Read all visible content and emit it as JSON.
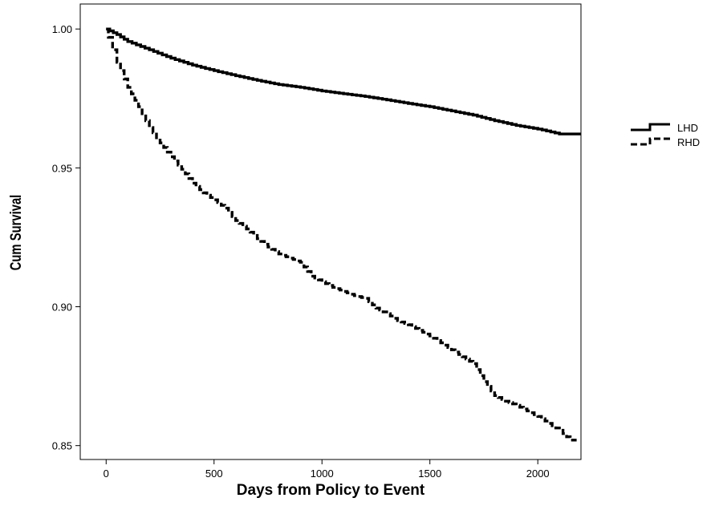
{
  "chart_data": {
    "type": "line",
    "title": "",
    "xlabel": "Days from Policy to Event",
    "ylabel": "Cum Survival",
    "xlim": [
      -120,
      2200
    ],
    "ylim": [
      0.845,
      1.009
    ],
    "x_ticks": [
      0,
      500,
      1000,
      1500,
      2000
    ],
    "x_tick_labels": [
      "0",
      "500",
      "1000",
      "1500",
      "2000"
    ],
    "y_ticks": [
      0.85,
      0.9,
      0.95,
      1.0
    ],
    "y_tick_labels": [
      "0.85",
      "0.90",
      "0.95",
      "1.00"
    ],
    "grid": false,
    "legend_position": "right",
    "series": [
      {
        "name": "LHD",
        "style": "solid",
        "color": "#000000",
        "x": [
          0,
          50,
          100,
          200,
          300,
          400,
          500,
          600,
          700,
          800,
          900,
          1000,
          1100,
          1200,
          1300,
          1400,
          1500,
          1600,
          1700,
          1800,
          1900,
          2000,
          2100,
          2200
        ],
        "y": [
          1.0,
          0.998,
          0.9955,
          0.9925,
          0.9895,
          0.987,
          0.985,
          0.9832,
          0.9815,
          0.98,
          0.979,
          0.9777,
          0.9767,
          0.9757,
          0.9745,
          0.9732,
          0.972,
          0.9705,
          0.969,
          0.967,
          0.9653,
          0.964,
          0.9622,
          0.9622
        ]
      },
      {
        "name": "RHD",
        "style": "dashed",
        "color": "#000000",
        "x": [
          0,
          10,
          50,
          100,
          150,
          200,
          250,
          300,
          350,
          400,
          450,
          500,
          550,
          600,
          650,
          700,
          750,
          800,
          850,
          900,
          950,
          1000,
          1050,
          1100,
          1150,
          1200,
          1250,
          1300,
          1350,
          1400,
          1450,
          1500,
          1550,
          1600,
          1650,
          1700,
          1750,
          1800,
          1850,
          1900,
          1950,
          2000,
          2050,
          2100,
          2150,
          2180
        ],
        "y": [
          1.0,
          0.997,
          0.988,
          0.979,
          0.972,
          0.9645,
          0.959,
          0.954,
          0.9495,
          0.9445,
          0.941,
          0.9385,
          0.9355,
          0.931,
          0.928,
          0.9245,
          0.9215,
          0.919,
          0.9175,
          0.916,
          0.911,
          0.909,
          0.907,
          0.9055,
          0.904,
          0.903,
          0.8995,
          0.8975,
          0.895,
          0.8935,
          0.8915,
          0.8895,
          0.887,
          0.8845,
          0.882,
          0.8795,
          0.873,
          0.868,
          0.866,
          0.8645,
          0.8625,
          0.8605,
          0.858,
          0.8555,
          0.852,
          0.852
        ]
      }
    ]
  }
}
